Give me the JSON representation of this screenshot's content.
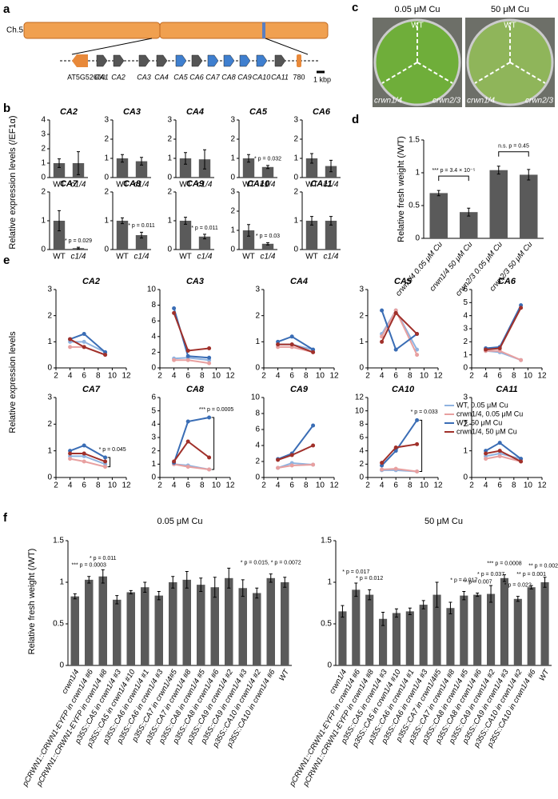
{
  "panel_labels": [
    "a",
    "b",
    "c",
    "d",
    "e",
    "f"
  ],
  "diagram": {
    "chromosome": "Ch.5",
    "scale": "1 kbp",
    "genes": [
      {
        "label": "AT5G52660",
        "color": "#e8893a"
      },
      {
        "label": "CA1",
        "color": "#000000"
      },
      {
        "label": "CA2",
        "color": "#000000"
      },
      {
        "label": "CA3",
        "color": "#000000"
      },
      {
        "label": "CA4",
        "color": "#000000"
      },
      {
        "label": "CA5",
        "color": "#3f7fcf"
      },
      {
        "label": "CA6",
        "color": "#000000"
      },
      {
        "label": "CA7",
        "color": "#3f7fcf"
      },
      {
        "label": "CA8",
        "color": "#3f7fcf"
      },
      {
        "label": "CA9",
        "color": "#3f7fcf"
      },
      {
        "label": "CA10",
        "color": "#3f7fcf"
      },
      {
        "label": "CA11",
        "color": "#000000"
      },
      {
        "label": "780",
        "color": "#e8893a"
      }
    ]
  },
  "photos": [
    {
      "title": "0.05 μM Cu",
      "labels": [
        "WT",
        "crwn1/4",
        "crwn2/3"
      ]
    },
    {
      "title": "50 μM Cu",
      "labels": [
        "WT",
        "crwn1/4",
        "crwn2/3"
      ]
    }
  ],
  "panel_b_ylabel": "Relative expression levels (/EF1α)",
  "panel_e_ylabel": "Relative expression levels",
  "panel_f_ylabel": "Relative fresh weight (/WT)",
  "chart_data": [
    {
      "type": "bar",
      "title": "CA2",
      "categories": [
        "WT",
        "c1/4"
      ],
      "values": [
        1.0,
        1.0
      ],
      "errors": [
        0.3,
        0.8
      ],
      "color": "#5a5a5a",
      "ylim": [
        0,
        4
      ],
      "yticks": [
        0,
        1,
        2,
        3,
        4
      ],
      "annotations": [
        null,
        null
      ]
    },
    {
      "type": "bar",
      "title": "CA3",
      "categories": [
        "WT",
        "c1/4"
      ],
      "values": [
        1.0,
        0.85
      ],
      "errors": [
        0.2,
        0.2
      ],
      "color": "#5a5a5a",
      "ylim": [
        0,
        3
      ],
      "yticks": [
        0,
        1,
        2,
        3
      ],
      "annotations": [
        null,
        null
      ]
    },
    {
      "type": "bar",
      "title": "CA4",
      "categories": [
        "WT",
        "c1/4"
      ],
      "values": [
        1.0,
        0.95
      ],
      "errors": [
        0.3,
        0.5
      ],
      "color": "#5a5a5a",
      "ylim": [
        0,
        3
      ],
      "yticks": [
        0,
        1,
        2,
        3
      ],
      "annotations": [
        null,
        null
      ]
    },
    {
      "type": "bar",
      "title": "CA5",
      "categories": [
        "WT",
        "c1/4"
      ],
      "values": [
        1.0,
        0.55
      ],
      "errors": [
        0.2,
        0.08
      ],
      "color": "#5a5a5a",
      "ylim": [
        0,
        3
      ],
      "yticks": [
        0,
        1,
        2,
        3
      ],
      "annotations": [
        null,
        "* p = 0.032"
      ]
    },
    {
      "type": "bar",
      "title": "CA6",
      "categories": [
        "WT",
        "c1/4"
      ],
      "values": [
        1.0,
        0.6
      ],
      "errors": [
        0.25,
        0.3
      ],
      "color": "#5a5a5a",
      "ylim": [
        0,
        3
      ],
      "yticks": [
        0,
        1,
        2,
        3
      ],
      "annotations": [
        null,
        null
      ]
    },
    {
      "type": "bar",
      "title": "CA7",
      "categories": [
        "WT",
        "c1/4"
      ],
      "values": [
        1.0,
        0.05
      ],
      "errors": [
        0.35,
        0.03
      ],
      "color": "#5a5a5a",
      "ylim": [
        0,
        2
      ],
      "yticks": [
        0,
        1,
        2
      ],
      "annotations": [
        null,
        "* p = 0.029"
      ]
    },
    {
      "type": "bar",
      "title": "CA8",
      "categories": [
        "WT",
        "c1/4"
      ],
      "values": [
        1.0,
        0.5
      ],
      "errors": [
        0.1,
        0.1
      ],
      "color": "#5a5a5a",
      "ylim": [
        0,
        2
      ],
      "yticks": [
        0,
        1,
        2
      ],
      "annotations": [
        null,
        "* p = 0.011"
      ]
    },
    {
      "type": "bar",
      "title": "CA9",
      "categories": [
        "WT",
        "c1/4"
      ],
      "values": [
        1.0,
        0.45
      ],
      "errors": [
        0.12,
        0.08
      ],
      "color": "#5a5a5a",
      "ylim": [
        0,
        2
      ],
      "yticks": [
        0,
        1,
        2
      ],
      "annotations": [
        null,
        "* p = 0.011"
      ]
    },
    {
      "type": "bar",
      "title": "CA10",
      "categories": [
        "WT",
        "c1/4"
      ],
      "values": [
        1.0,
        0.3
      ],
      "errors": [
        0.3,
        0.06
      ],
      "color": "#5a5a5a",
      "ylim": [
        0,
        3
      ],
      "yticks": [
        0,
        1,
        2,
        3
      ],
      "annotations": [
        null,
        "* p = 0.03"
      ]
    },
    {
      "type": "bar",
      "title": "CA11",
      "categories": [
        "WT",
        "c1/4"
      ],
      "values": [
        1.0,
        1.0
      ],
      "errors": [
        0.15,
        0.15
      ],
      "color": "#5a5a5a",
      "ylim": [
        0,
        2
      ],
      "yticks": [
        0,
        1,
        2
      ],
      "annotations": [
        null,
        null
      ]
    },
    {
      "type": "bar",
      "ylabel": "Relative fresh weight (/WT)",
      "categories": [
        "crwn1/4 0.05 μM Cu",
        "crwn1/4 50 μM Cu",
        "crwn2/3 0.05 μM Cu",
        "crwn2/3 50 μM Cu"
      ],
      "values": [
        0.69,
        0.4,
        1.04,
        0.97
      ],
      "errors": [
        0.04,
        0.06,
        0.06,
        0.08
      ],
      "color": "#5a5a5a",
      "ylim": [
        0,
        1.5
      ],
      "yticks": [
        0,
        0.5,
        1,
        1.5
      ],
      "annotations": [
        "*** p = 3.4 × 10⁻⁵",
        null,
        "n.s. p = 0.45",
        null
      ]
    },
    {
      "type": "line",
      "title": "CA2",
      "x": [
        4,
        6,
        9
      ],
      "xlim": [
        2,
        12
      ],
      "xticks": [
        2,
        4,
        6,
        8,
        10,
        12
      ],
      "ylim": [
        0,
        3
      ],
      "yticks": [
        0,
        1,
        2,
        3
      ],
      "series": [
        {
          "color": "#8fb3e0",
          "values": [
            1.0,
            1.0,
            0.6
          ]
        },
        {
          "color": "#e8a0a0",
          "values": [
            0.8,
            0.8,
            0.5
          ]
        },
        {
          "color": "#3a6db5",
          "values": [
            1.1,
            1.3,
            0.6
          ]
        },
        {
          "color": "#a0302a",
          "values": [
            1.1,
            0.8,
            0.5
          ]
        }
      ]
    },
    {
      "type": "line",
      "title": "CA3",
      "x": [
        4,
        6,
        9
      ],
      "xlim": [
        2,
        12
      ],
      "xticks": [
        2,
        4,
        6,
        8,
        10,
        12
      ],
      "ylim": [
        0,
        10
      ],
      "yticks": [
        0,
        2,
        4,
        6,
        8,
        10
      ],
      "series": [
        {
          "color": "#8fb3e0",
          "values": [
            1.2,
            1.3,
            1.0
          ]
        },
        {
          "color": "#e8a0a0",
          "values": [
            1.0,
            1.0,
            0.6
          ]
        },
        {
          "color": "#3a6db5",
          "values": [
            7.6,
            1.5,
            1.3
          ]
        },
        {
          "color": "#a0302a",
          "values": [
            7.0,
            2.2,
            2.5
          ]
        }
      ]
    },
    {
      "type": "line",
      "title": "CA4",
      "x": [
        4,
        6,
        9
      ],
      "xlim": [
        2,
        12
      ],
      "xticks": [
        2,
        4,
        6,
        8,
        10,
        12
      ],
      "ylim": [
        0,
        3
      ],
      "yticks": [
        0,
        1,
        2,
        3
      ],
      "series": [
        {
          "color": "#8fb3e0",
          "values": [
            0.9,
            0.9,
            0.7
          ]
        },
        {
          "color": "#e8a0a0",
          "values": [
            0.8,
            0.8,
            0.6
          ]
        },
        {
          "color": "#3a6db5",
          "values": [
            1.0,
            1.2,
            0.7
          ]
        },
        {
          "color": "#a0302a",
          "values": [
            0.9,
            0.9,
            0.6
          ]
        }
      ]
    },
    {
      "type": "line",
      "title": "CA5",
      "x": [
        4,
        6,
        9
      ],
      "xlim": [
        2,
        12
      ],
      "xticks": [
        2,
        4,
        6,
        8,
        10,
        12
      ],
      "ylim": [
        0,
        3
      ],
      "yticks": [
        0,
        1,
        2,
        3
      ],
      "series": [
        {
          "color": "#8fb3e0",
          "values": [
            1.3,
            2.2,
            0.7
          ]
        },
        {
          "color": "#e8a0a0",
          "values": [
            1.2,
            2.2,
            0.5
          ]
        },
        {
          "color": "#3a6db5",
          "values": [
            2.2,
            0.7,
            1.3
          ]
        },
        {
          "color": "#a0302a",
          "values": [
            1.0,
            2.1,
            1.3
          ]
        }
      ]
    },
    {
      "type": "line",
      "title": "CA6",
      "x": [
        4,
        6,
        9
      ],
      "xlim": [
        2,
        12
      ],
      "xticks": [
        2,
        4,
        6,
        8,
        10,
        12
      ],
      "ylim": [
        0,
        6
      ],
      "yticks": [
        0,
        1,
        2,
        3,
        4,
        5,
        6
      ],
      "series": [
        {
          "color": "#8fb3e0",
          "values": [
            1.3,
            1.2,
            0.6
          ]
        },
        {
          "color": "#e8a0a0",
          "values": [
            1.3,
            1.3,
            0.6
          ]
        },
        {
          "color": "#3a6db5",
          "values": [
            1.5,
            1.6,
            4.8
          ]
        },
        {
          "color": "#a0302a",
          "values": [
            1.4,
            1.5,
            4.6
          ]
        }
      ]
    },
    {
      "type": "line",
      "title": "CA7",
      "annotation": "* p = 0.045",
      "x": [
        4,
        6,
        9
      ],
      "xlim": [
        2,
        12
      ],
      "xticks": [
        2,
        4,
        6,
        8,
        10,
        12
      ],
      "ylim": [
        0,
        3
      ],
      "yticks": [
        0,
        1,
        2,
        3
      ],
      "series": [
        {
          "color": "#8fb3e0",
          "values": [
            0.8,
            0.8,
            0.5
          ]
        },
        {
          "color": "#e8a0a0",
          "values": [
            0.7,
            0.6,
            0.4
          ]
        },
        {
          "color": "#3a6db5",
          "values": [
            1.0,
            1.2,
            0.75
          ]
        },
        {
          "color": "#a0302a",
          "values": [
            0.9,
            0.9,
            0.6
          ]
        }
      ]
    },
    {
      "type": "line",
      "title": "CA8",
      "annotation": "*** p = 0.0005",
      "x": [
        4,
        6,
        9
      ],
      "xlim": [
        2,
        12
      ],
      "xticks": [
        2,
        4,
        6,
        8,
        10,
        12
      ],
      "ylim": [
        0,
        6
      ],
      "yticks": [
        0,
        1,
        2,
        3,
        4,
        5,
        6
      ],
      "series": [
        {
          "color": "#8fb3e0",
          "values": [
            1.0,
            0.9,
            0.6
          ]
        },
        {
          "color": "#e8a0a0",
          "values": [
            1.0,
            0.8,
            0.6
          ]
        },
        {
          "color": "#3a6db5",
          "values": [
            1.1,
            4.2,
            4.5
          ]
        },
        {
          "color": "#a0302a",
          "values": [
            1.2,
            2.7,
            1.5
          ]
        }
      ]
    },
    {
      "type": "line",
      "title": "CA9",
      "x": [
        4,
        6,
        9
      ],
      "xlim": [
        2,
        12
      ],
      "xticks": [
        2,
        4,
        6,
        8,
        10,
        12
      ],
      "ylim": [
        0,
        10
      ],
      "yticks": [
        0,
        2,
        4,
        6,
        8,
        10
      ],
      "series": [
        {
          "color": "#8fb3e0",
          "values": [
            1.2,
            1.8,
            1.6
          ]
        },
        {
          "color": "#e8a0a0",
          "values": [
            1.2,
            1.5,
            1.6
          ]
        },
        {
          "color": "#3a6db5",
          "values": [
            2.3,
            3.0,
            6.5
          ]
        },
        {
          "color": "#a0302a",
          "values": [
            2.2,
            2.8,
            4.0
          ]
        }
      ]
    },
    {
      "type": "line",
      "title": "CA10",
      "annotation": "* p = 0.033",
      "x": [
        4,
        6,
        9
      ],
      "xlim": [
        2,
        12
      ],
      "xticks": [
        2,
        4,
        6,
        8,
        10,
        12
      ],
      "ylim": [
        0,
        12
      ],
      "yticks": [
        0,
        2,
        4,
        6,
        8,
        10,
        12
      ],
      "legend": "right",
      "series": [
        {
          "name": "WT, 0.05 μM Cu",
          "color": "#8fb3e0",
          "values": [
            1.1,
            1.1,
            0.9
          ]
        },
        {
          "name": "crwn1/4, 0.05 μM Cu",
          "color": "#e8a0a0",
          "values": [
            1.2,
            1.3,
            0.9
          ]
        },
        {
          "name": "WT, 50 μM Cu",
          "color": "#3a6db5",
          "values": [
            1.8,
            4.0,
            8.6
          ]
        },
        {
          "name": "crwn1/4, 50 μM Cu",
          "color": "#a0302a",
          "values": [
            2.2,
            4.5,
            5.0
          ]
        }
      ]
    },
    {
      "type": "line",
      "title": "CA11",
      "x": [
        4,
        6,
        9
      ],
      "xlim": [
        2,
        12
      ],
      "xticks": [
        2,
        4,
        6,
        8,
        10,
        12
      ],
      "ylim": [
        0,
        3
      ],
      "yticks": [
        0,
        1,
        2,
        3
      ],
      "series": [
        {
          "color": "#8fb3e0",
          "values": [
            0.8,
            0.9,
            0.7
          ]
        },
        {
          "color": "#e8a0a0",
          "values": [
            0.7,
            0.8,
            0.6
          ]
        },
        {
          "color": "#3a6db5",
          "values": [
            1.0,
            1.3,
            0.7
          ]
        },
        {
          "color": "#a0302a",
          "values": [
            0.9,
            1.0,
            0.6
          ]
        }
      ]
    },
    {
      "type": "bar",
      "title": "0.05 μM Cu",
      "categories": [
        "crwn1/4",
        "pCRWN1::CRWN1-EYFP in crwn1/4 #6",
        "pCRWN1::CRWN1-EYFP in crwn1/4 #8",
        "p35S::CA5 in crwn1/4 #3",
        "p35S::CA5 in crwn1/4 #10",
        "p35S::CA6 in crwn1/4 #1",
        "p35S::CA6 in crwn1/4 #3",
        "p35S::CA7 in crwn1/4#5",
        "p35S::CA7 in crwn1/4 #8",
        "p35S::CA8 in crwn1/4 #5",
        "p35S::CA8 in crwn1/4 #6",
        "p35S::CA9 in crwn1/4 #2",
        "p35S::CA9 in crwn1/4 #3",
        "p35S::CA10 in crwn1/4 #2",
        "p35S::CA10 in crwn1/4 #6",
        "WT"
      ],
      "values": [
        0.83,
        1.03,
        1.07,
        0.79,
        0.88,
        0.94,
        0.84,
        1.0,
        1.03,
        0.97,
        0.94,
        1.05,
        0.93,
        0.87,
        1.05,
        1.0
      ],
      "errors": [
        0.03,
        0.04,
        0.08,
        0.05,
        0.02,
        0.06,
        0.05,
        0.07,
        0.1,
        0.08,
        0.12,
        0.12,
        0.1,
        0.06,
        0.05,
        0.06
      ],
      "color": "#5a5a5a",
      "ylim": [
        0,
        1.5
      ],
      "yticks": [
        0,
        0.5,
        1,
        1.5
      ],
      "annotations": [
        null,
        "*** p = 0.0003",
        "* p = 0.011",
        null,
        null,
        null,
        null,
        null,
        null,
        null,
        null,
        null,
        null,
        null,
        "* p = 0.015, * p = 0.0072",
        null
      ]
    },
    {
      "type": "bar",
      "title": "50 μM Cu",
      "categories": [
        "crwn1/4",
        "pCRWN1::CRWN1-EYFP in crwn1/4 #6",
        "pCRWN1::CRWN1-EYFP in crwn1/4 #8",
        "p35S::CA5 in crwn1/4 #3",
        "p35S::CA5 in crwn1/4 #10",
        "p35S::CA6 in crwn1/4 #1",
        "p35S::CA6 in crwn1/4 #3",
        "p35S::CA7 in crwn1/4#5",
        "p35S::CA7 in crwn1/4 #8",
        "p35S::CA8 in crwn1/4 #5",
        "p35S::CA8 in crwn1/4 #6",
        "p35S::CA9 in crwn1/4 #2",
        "p35S::CA9 in crwn1/4 #3",
        "p35S::CA10 in crwn1/4 #2",
        "p35S::CA10 in crwn1/4 #6",
        "WT"
      ],
      "values": [
        0.65,
        0.91,
        0.85,
        0.56,
        0.63,
        0.65,
        0.73,
        0.85,
        0.69,
        0.84,
        0.85,
        0.86,
        1.05,
        0.8,
        0.94,
        1.0
      ],
      "errors": [
        0.07,
        0.08,
        0.06,
        0.08,
        0.05,
        0.04,
        0.05,
        0.15,
        0.07,
        0.05,
        0.02,
        0.1,
        0.04,
        0.03,
        0.02,
        0.06
      ],
      "color": "#5a5a5a",
      "ylim": [
        0,
        1.5
      ],
      "yticks": [
        0,
        0.5,
        1,
        1.5
      ],
      "annotations": [
        null,
        "* p = 0.017",
        "* p = 0.012",
        null,
        null,
        null,
        null,
        null,
        null,
        "* p = 0.017",
        "** p = 0.007",
        "* p = 0.037",
        "*** p = 0.0008",
        "* p = 0.022",
        "** p = 0.001",
        "** p = 0.0026"
      ]
    }
  ]
}
